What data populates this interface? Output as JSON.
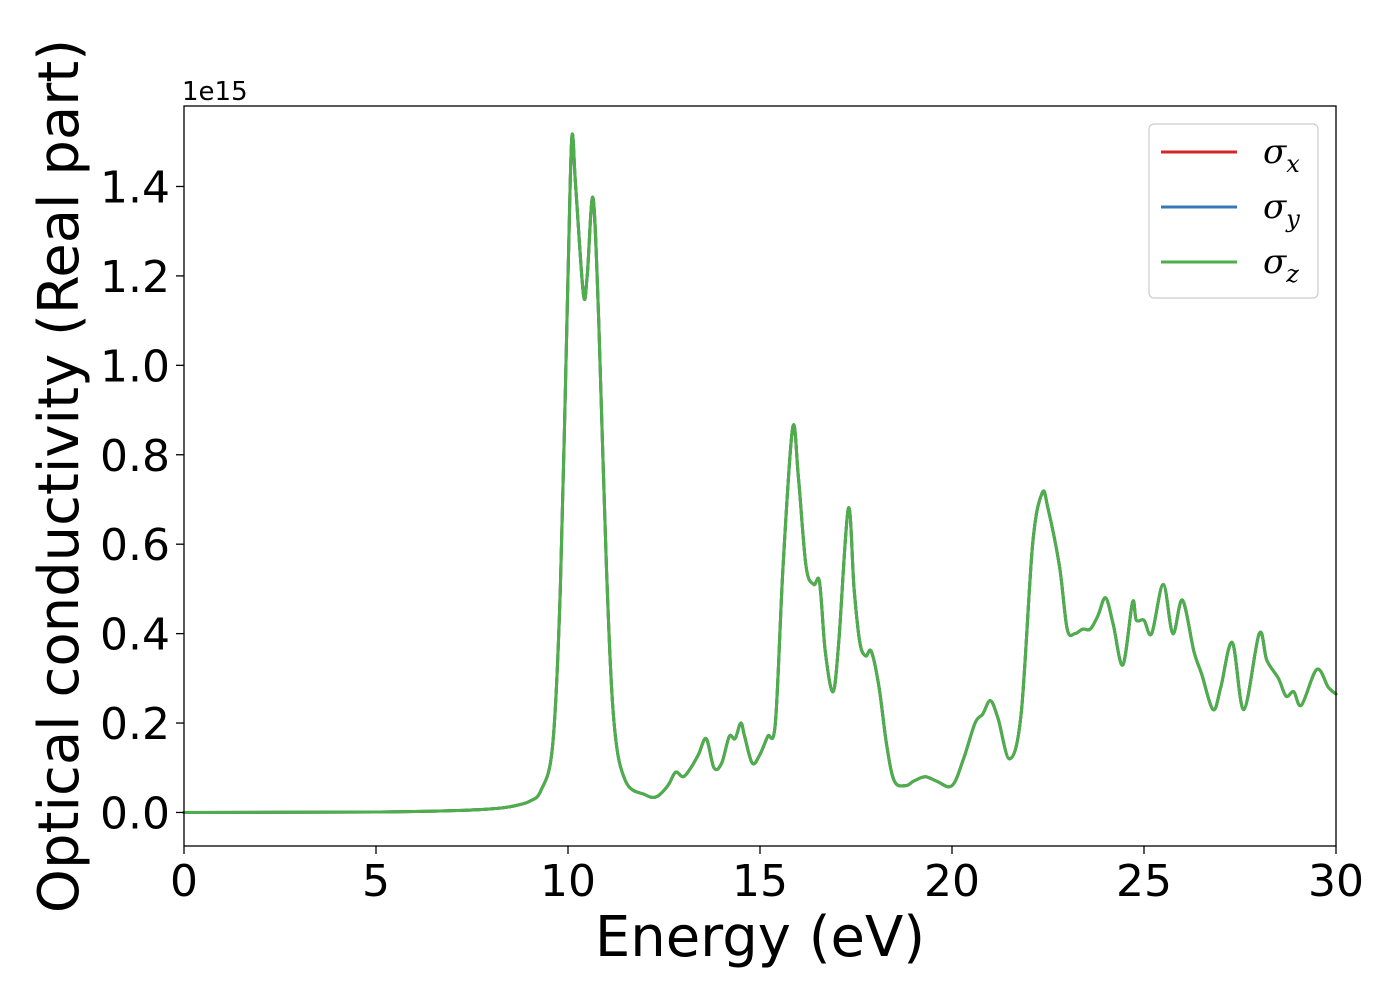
{
  "chart_data": {
    "type": "line",
    "xlabel": "Energy (eV)",
    "ylabel": "Optical conductivity (Real part)",
    "y_offset_text": "1e15",
    "xlim": [
      0,
      30
    ],
    "ylim": [
      -0.075,
      1.58
    ],
    "x_ticks": [
      0,
      5,
      10,
      15,
      20,
      25,
      30
    ],
    "x_tick_labels": [
      "0",
      "5",
      "10",
      "15",
      "20",
      "25",
      "30"
    ],
    "y_ticks": [
      0.0,
      0.2,
      0.4,
      0.6,
      0.8,
      1.0,
      1.2,
      1.4
    ],
    "y_tick_labels": [
      "0.0",
      "0.2",
      "0.4",
      "0.6",
      "0.8",
      "1.0",
      "1.2",
      "1.4"
    ],
    "grid": false,
    "legend_position": "top-right",
    "series": [
      {
        "name": "σ_x",
        "legend_symbol": "σ",
        "legend_subscript": "x",
        "color": "#d62728",
        "x": [
          0,
          5,
          7,
          8,
          8.5,
          9,
          9.3,
          9.6,
          9.8,
          10.0,
          10.1,
          10.2,
          10.4,
          10.5,
          10.65,
          10.8,
          11.0,
          11.2,
          11.5,
          12.0,
          12.3,
          12.6,
          12.8,
          13.0,
          13.2,
          13.4,
          13.6,
          13.8,
          14.0,
          14.2,
          14.35,
          14.5,
          14.6,
          14.8,
          15.0,
          15.2,
          15.4,
          15.6,
          15.85,
          16.0,
          16.2,
          16.4,
          16.55,
          16.7,
          16.9,
          17.05,
          17.3,
          17.45,
          17.6,
          17.75,
          17.9,
          18.1,
          18.3,
          18.5,
          18.8,
          19.0,
          19.3,
          19.6,
          20.0,
          20.3,
          20.6,
          20.8,
          21.0,
          21.2,
          21.5,
          21.8,
          22.1,
          22.35,
          22.5,
          22.8,
          23.0,
          23.2,
          23.4,
          23.6,
          23.8,
          24.0,
          24.2,
          24.45,
          24.7,
          24.8,
          25.0,
          25.2,
          25.5,
          25.75,
          26.0,
          26.3,
          26.5,
          26.8,
          27.0,
          27.3,
          27.6,
          28.0,
          28.2,
          28.5,
          28.7,
          28.9,
          29.1,
          29.5,
          29.8,
          30.0
        ],
        "values": [
          0,
          0.001,
          0.004,
          0.008,
          0.013,
          0.025,
          0.05,
          0.15,
          0.5,
          1.2,
          1.51,
          1.4,
          1.16,
          1.2,
          1.375,
          1.1,
          0.55,
          0.2,
          0.07,
          0.04,
          0.035,
          0.06,
          0.09,
          0.08,
          0.1,
          0.13,
          0.165,
          0.1,
          0.11,
          0.17,
          0.165,
          0.2,
          0.17,
          0.11,
          0.13,
          0.17,
          0.2,
          0.55,
          0.86,
          0.75,
          0.55,
          0.51,
          0.515,
          0.36,
          0.27,
          0.38,
          0.68,
          0.5,
          0.38,
          0.35,
          0.36,
          0.28,
          0.15,
          0.07,
          0.06,
          0.07,
          0.08,
          0.07,
          0.06,
          0.12,
          0.2,
          0.22,
          0.25,
          0.21,
          0.12,
          0.22,
          0.6,
          0.715,
          0.68,
          0.55,
          0.41,
          0.4,
          0.41,
          0.41,
          0.44,
          0.48,
          0.42,
          0.33,
          0.47,
          0.43,
          0.43,
          0.4,
          0.51,
          0.4,
          0.475,
          0.36,
          0.31,
          0.23,
          0.28,
          0.38,
          0.23,
          0.4,
          0.34,
          0.3,
          0.26,
          0.27,
          0.24,
          0.32,
          0.28,
          0.265
        ]
      },
      {
        "name": "σ_y",
        "legend_symbol": "σ",
        "legend_subscript": "y",
        "color": "#3a78b4",
        "x": [
          0,
          5,
          7,
          8,
          8.5,
          9,
          9.3,
          9.6,
          9.8,
          10.0,
          10.1,
          10.2,
          10.4,
          10.5,
          10.65,
          10.8,
          11.0,
          11.2,
          11.5,
          12.0,
          12.3,
          12.6,
          12.8,
          13.0,
          13.2,
          13.4,
          13.6,
          13.8,
          14.0,
          14.2,
          14.35,
          14.5,
          14.6,
          14.8,
          15.0,
          15.2,
          15.4,
          15.6,
          15.85,
          16.0,
          16.2,
          16.4,
          16.55,
          16.7,
          16.9,
          17.05,
          17.3,
          17.45,
          17.6,
          17.75,
          17.9,
          18.1,
          18.3,
          18.5,
          18.8,
          19.0,
          19.3,
          19.6,
          20.0,
          20.3,
          20.6,
          20.8,
          21.0,
          21.2,
          21.5,
          21.8,
          22.1,
          22.35,
          22.5,
          22.8,
          23.0,
          23.2,
          23.4,
          23.6,
          23.8,
          24.0,
          24.2,
          24.45,
          24.7,
          24.8,
          25.0,
          25.2,
          25.5,
          25.75,
          26.0,
          26.3,
          26.5,
          26.8,
          27.0,
          27.3,
          27.6,
          28.0,
          28.2,
          28.5,
          28.7,
          28.9,
          29.1,
          29.5,
          29.8,
          30.0
        ],
        "values": [
          0,
          0.001,
          0.004,
          0.008,
          0.013,
          0.025,
          0.05,
          0.15,
          0.5,
          1.2,
          1.51,
          1.4,
          1.16,
          1.2,
          1.375,
          1.1,
          0.55,
          0.2,
          0.07,
          0.04,
          0.035,
          0.06,
          0.09,
          0.08,
          0.1,
          0.13,
          0.165,
          0.1,
          0.11,
          0.17,
          0.165,
          0.2,
          0.17,
          0.11,
          0.13,
          0.17,
          0.2,
          0.55,
          0.86,
          0.75,
          0.55,
          0.51,
          0.515,
          0.36,
          0.27,
          0.38,
          0.68,
          0.5,
          0.38,
          0.35,
          0.36,
          0.28,
          0.15,
          0.07,
          0.06,
          0.07,
          0.08,
          0.07,
          0.06,
          0.12,
          0.2,
          0.22,
          0.25,
          0.21,
          0.12,
          0.22,
          0.6,
          0.715,
          0.68,
          0.55,
          0.41,
          0.4,
          0.41,
          0.41,
          0.44,
          0.48,
          0.42,
          0.33,
          0.47,
          0.43,
          0.43,
          0.4,
          0.51,
          0.4,
          0.475,
          0.36,
          0.31,
          0.23,
          0.28,
          0.38,
          0.23,
          0.4,
          0.34,
          0.3,
          0.26,
          0.27,
          0.24,
          0.32,
          0.28,
          0.265
        ]
      },
      {
        "name": "σ_z",
        "legend_symbol": "σ",
        "legend_subscript": "z",
        "color": "#4daf4a",
        "x": [
          0,
          5,
          7,
          8,
          8.5,
          9,
          9.3,
          9.6,
          9.8,
          10.0,
          10.1,
          10.2,
          10.4,
          10.5,
          10.65,
          10.8,
          11.0,
          11.2,
          11.5,
          12.0,
          12.3,
          12.6,
          12.8,
          13.0,
          13.2,
          13.4,
          13.6,
          13.8,
          14.0,
          14.2,
          14.35,
          14.5,
          14.6,
          14.8,
          15.0,
          15.2,
          15.4,
          15.6,
          15.85,
          16.0,
          16.2,
          16.4,
          16.55,
          16.7,
          16.9,
          17.05,
          17.3,
          17.45,
          17.6,
          17.75,
          17.9,
          18.1,
          18.3,
          18.5,
          18.8,
          19.0,
          19.3,
          19.6,
          20.0,
          20.3,
          20.6,
          20.8,
          21.0,
          21.2,
          21.5,
          21.8,
          22.1,
          22.35,
          22.5,
          22.8,
          23.0,
          23.2,
          23.4,
          23.6,
          23.8,
          24.0,
          24.2,
          24.45,
          24.7,
          24.8,
          25.0,
          25.2,
          25.5,
          25.75,
          26.0,
          26.3,
          26.5,
          26.8,
          27.0,
          27.3,
          27.6,
          28.0,
          28.2,
          28.5,
          28.7,
          28.9,
          29.1,
          29.5,
          29.8,
          30.0
        ],
        "values": [
          0,
          0.001,
          0.004,
          0.008,
          0.013,
          0.025,
          0.05,
          0.15,
          0.5,
          1.2,
          1.51,
          1.4,
          1.16,
          1.2,
          1.375,
          1.1,
          0.55,
          0.2,
          0.07,
          0.04,
          0.035,
          0.06,
          0.09,
          0.08,
          0.1,
          0.13,
          0.165,
          0.1,
          0.11,
          0.17,
          0.165,
          0.2,
          0.17,
          0.11,
          0.13,
          0.17,
          0.2,
          0.55,
          0.86,
          0.75,
          0.55,
          0.51,
          0.515,
          0.36,
          0.27,
          0.38,
          0.68,
          0.5,
          0.38,
          0.35,
          0.36,
          0.28,
          0.15,
          0.07,
          0.06,
          0.07,
          0.08,
          0.07,
          0.06,
          0.12,
          0.2,
          0.22,
          0.25,
          0.21,
          0.12,
          0.22,
          0.6,
          0.715,
          0.68,
          0.55,
          0.41,
          0.4,
          0.41,
          0.41,
          0.44,
          0.48,
          0.42,
          0.33,
          0.47,
          0.43,
          0.43,
          0.4,
          0.51,
          0.4,
          0.475,
          0.36,
          0.31,
          0.23,
          0.28,
          0.38,
          0.23,
          0.4,
          0.34,
          0.3,
          0.26,
          0.27,
          0.24,
          0.32,
          0.28,
          0.265
        ]
      }
    ]
  }
}
